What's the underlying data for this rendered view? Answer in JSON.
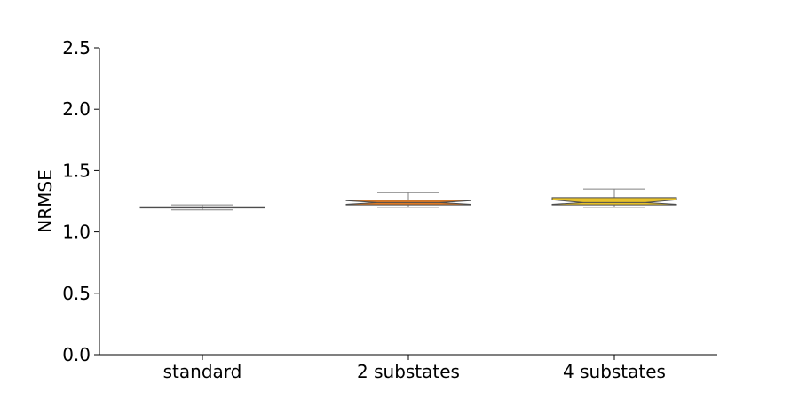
{
  "chart_data": {
    "type": "box",
    "title": "",
    "xlabel": "",
    "ylabel": "NRMSE",
    "ylim": [
      0,
      2.5
    ],
    "yticks": [
      "0.0",
      "0.5",
      "1.0",
      "1.5",
      "2.0",
      "2.5"
    ],
    "grid": false,
    "notched": true,
    "categories": [
      "standard",
      "2 substates",
      "4 substates"
    ],
    "boxes": [
      {
        "category": "standard",
        "whisker_low": 1.18,
        "q1": 1.195,
        "median": 1.2,
        "q3": 1.205,
        "whisker_high": 1.22,
        "notch_low": 1.198,
        "notch_high": 1.202,
        "color": "#6a5acd"
      },
      {
        "category": "2 substates",
        "whisker_low": 1.2,
        "q1": 1.22,
        "median": 1.24,
        "q3": 1.26,
        "whisker_high": 1.32,
        "notch_low": 1.225,
        "notch_high": 1.255,
        "color": "#e07b24"
      },
      {
        "category": "4 substates",
        "whisker_low": 1.2,
        "q1": 1.22,
        "median": 1.24,
        "q3": 1.28,
        "whisker_high": 1.35,
        "notch_low": 1.225,
        "notch_high": 1.262,
        "color": "#e8c22b"
      }
    ]
  }
}
